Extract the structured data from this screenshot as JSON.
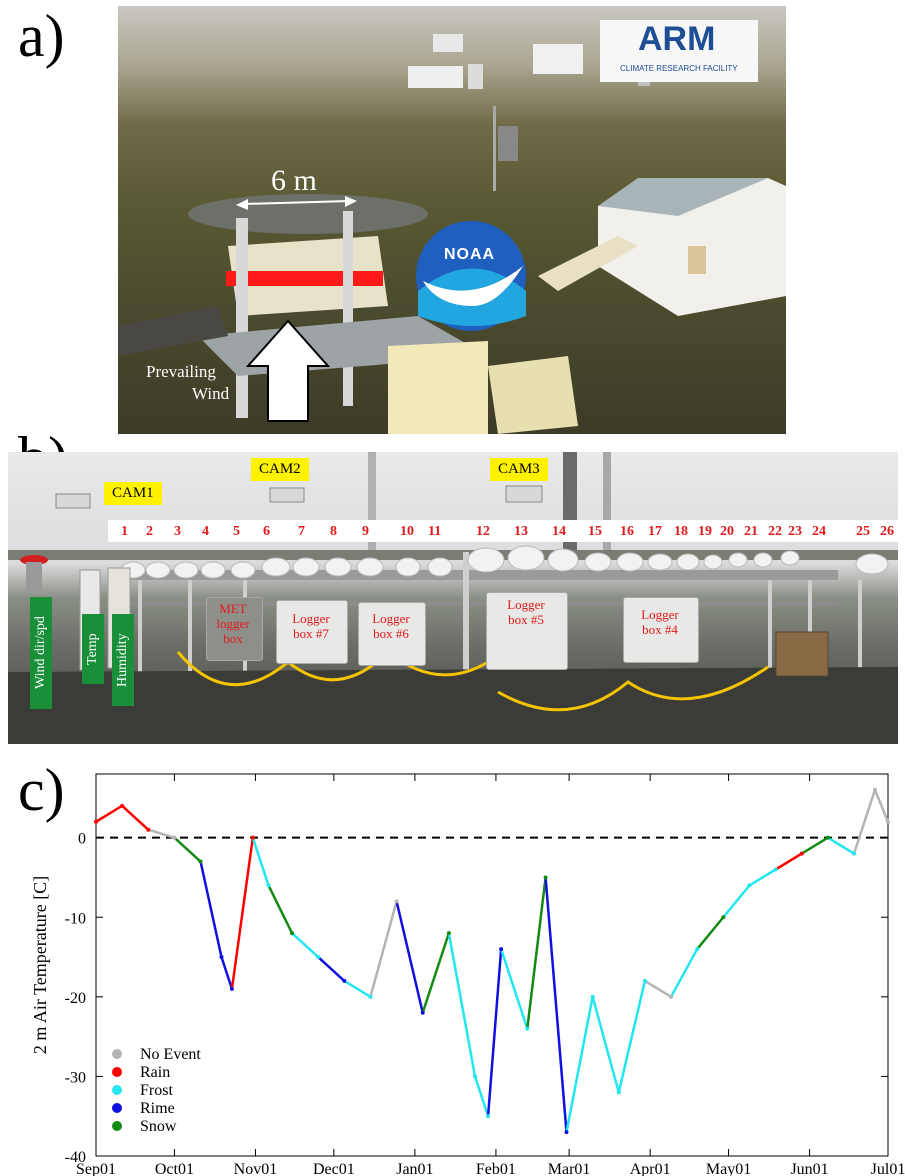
{
  "panels": {
    "a": {
      "label": "a)",
      "distance_label": "6 m",
      "wind_label_line1": "Prevailing",
      "wind_label_line2": "Wind",
      "arm_logo_text": "ARM",
      "arm_logo_subtext": "CLIMATE RESEARCH FACILITY",
      "noaa_logo_text": "NOAA"
    },
    "b": {
      "label": "b)",
      "cameras": [
        "CAM1",
        "CAM2",
        "CAM3"
      ],
      "sensor_numbers": [
        "1",
        "2",
        "3",
        "4",
        "5",
        "6",
        "7",
        "8",
        "9",
        "10",
        "11",
        "12",
        "13",
        "14",
        "15",
        "16",
        "17",
        "18",
        "19",
        "20",
        "21",
        "22",
        "23",
        "24",
        "25",
        "26"
      ],
      "boxes": [
        "MET logger box",
        "Logger box #7",
        "Logger box #6",
        "Logger box #5",
        "Logger box #4"
      ],
      "tags": [
        "Wind dir/spd",
        "Temp",
        "Humidity"
      ]
    },
    "c": {
      "label": "c)"
    }
  },
  "chart_data": {
    "type": "line",
    "ylabel": "2 m Air Temperature [C]",
    "xlabel": "",
    "ylim": [
      -40,
      8
    ],
    "yticks": [
      0,
      -10,
      -20,
      -30,
      -40
    ],
    "xticks": [
      "Sep01",
      "Oct01",
      "Nov01",
      "Dec01",
      "Jan01",
      "Feb01",
      "Mar01",
      "Apr01",
      "May01",
      "Jun01",
      "Jul01"
    ],
    "reference_line": 0,
    "legend": [
      {
        "name": "No Event",
        "color": "#b4b4b4"
      },
      {
        "name": "Rain",
        "color": "#ff0000"
      },
      {
        "name": "Frost",
        "color": "#22e6f0"
      },
      {
        "name": "Rime",
        "color": "#1010e0"
      },
      {
        "name": "Snow",
        "color": "#138a13"
      }
    ],
    "series_approx": [
      {
        "day": 0,
        "value": 2,
        "event": "Rain"
      },
      {
        "day": 10,
        "value": 4,
        "event": "Rain"
      },
      {
        "day": 20,
        "value": 1,
        "event": "Rain"
      },
      {
        "day": 30,
        "value": 0,
        "event": "No Event"
      },
      {
        "day": 40,
        "value": -3,
        "event": "Snow"
      },
      {
        "day": 48,
        "value": -15,
        "event": "Rime"
      },
      {
        "day": 52,
        "value": -19,
        "event": "Rime"
      },
      {
        "day": 60,
        "value": 0,
        "event": "Rain"
      },
      {
        "day": 66,
        "value": -6,
        "event": "Frost"
      },
      {
        "day": 75,
        "value": -12,
        "event": "Snow"
      },
      {
        "day": 85,
        "value": -15,
        "event": "Frost"
      },
      {
        "day": 95,
        "value": -18,
        "event": "Rime"
      },
      {
        "day": 105,
        "value": -20,
        "event": "Frost"
      },
      {
        "day": 115,
        "value": -8,
        "event": "No Event"
      },
      {
        "day": 125,
        "value": -22,
        "event": "Rime"
      },
      {
        "day": 135,
        "value": -12,
        "event": "Snow"
      },
      {
        "day": 145,
        "value": -30,
        "event": "Frost"
      },
      {
        "day": 150,
        "value": -35,
        "event": "Frost"
      },
      {
        "day": 155,
        "value": -14,
        "event": "Rime"
      },
      {
        "day": 165,
        "value": -24,
        "event": "Frost"
      },
      {
        "day": 172,
        "value": -5,
        "event": "Snow"
      },
      {
        "day": 180,
        "value": -37,
        "event": "Rime"
      },
      {
        "day": 190,
        "value": -20,
        "event": "Frost"
      },
      {
        "day": 200,
        "value": -32,
        "event": "Frost"
      },
      {
        "day": 210,
        "value": -18,
        "event": "Frost"
      },
      {
        "day": 220,
        "value": -20,
        "event": "No Event"
      },
      {
        "day": 230,
        "value": -14,
        "event": "Frost"
      },
      {
        "day": 240,
        "value": -10,
        "event": "Snow"
      },
      {
        "day": 250,
        "value": -6,
        "event": "Frost"
      },
      {
        "day": 260,
        "value": -4,
        "event": "Frost"
      },
      {
        "day": 270,
        "value": -2,
        "event": "Rain"
      },
      {
        "day": 280,
        "value": 0,
        "event": "Snow"
      },
      {
        "day": 290,
        "value": -2,
        "event": "Frost"
      },
      {
        "day": 298,
        "value": 6,
        "event": "No Event"
      },
      {
        "day": 303,
        "value": 2,
        "event": "No Event"
      }
    ]
  }
}
